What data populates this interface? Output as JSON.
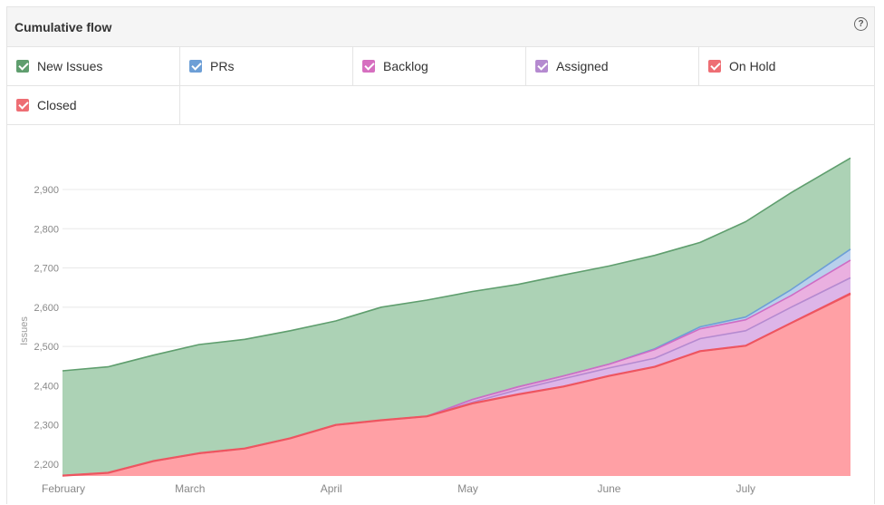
{
  "panel": {
    "title": "Cumulative flow",
    "help_icon": "question-circle-icon",
    "help_glyph": "?"
  },
  "legend": [
    {
      "label": "New Issues",
      "color": "#5f9e6e",
      "checked": true
    },
    {
      "label": "PRs",
      "color": "#6d9fd6",
      "checked": true
    },
    {
      "label": "Backlog",
      "color": "#d66fc0",
      "checked": true
    },
    {
      "label": "Assigned",
      "color": "#b58ad0",
      "checked": true
    },
    {
      "label": "On Hold",
      "color": "#ee6e74",
      "checked": true
    },
    {
      "label": "Closed",
      "color": "#ee6e74",
      "checked": true
    }
  ],
  "chart_data": {
    "type": "area",
    "stacked": true,
    "ylabel": "Issues",
    "ylim": [
      2170,
      2990
    ],
    "yticks": [
      "2,200",
      "2,300",
      "2,400",
      "2,500",
      "2,600",
      "2,700",
      "2,800",
      "2,900"
    ],
    "xticks": [
      "February",
      "March",
      "April",
      "May",
      "June",
      "July"
    ],
    "grid": true,
    "x_days": [
      0,
      10,
      20,
      30,
      40,
      50,
      60,
      70,
      80,
      90,
      100,
      110,
      120,
      130,
      140,
      150,
      160,
      173
    ],
    "series": [
      {
        "name": "Closed",
        "color": "#ee5560",
        "fill": "#ffa0a5",
        "values": [
          2171,
          2178,
          2208,
          2228,
          2240,
          2266,
          2300,
          2312,
          2322,
          2355,
          2378,
          2398,
          2425,
          2448,
          2488,
          2502,
          2560,
          2634
        ]
      },
      {
        "name": "On Hold",
        "color": "#ee5560",
        "fill": "#ffa0a5",
        "values": [
          2171,
          2178,
          2208,
          2228,
          2240,
          2266,
          2300,
          2312,
          2322,
          2355,
          2378,
          2398,
          2425,
          2448,
          2488,
          2502,
          2560,
          2636
        ]
      },
      {
        "name": "Assigned",
        "color": "#b58ad0",
        "fill": "#ddb5e8",
        "values": [
          2171,
          2178,
          2208,
          2228,
          2240,
          2266,
          2300,
          2312,
          2322,
          2358,
          2390,
          2418,
          2445,
          2470,
          2520,
          2540,
          2600,
          2675
        ]
      },
      {
        "name": "Backlog",
        "color": "#cf6cc4",
        "fill": "#eab0e0",
        "values": [
          2171,
          2178,
          2208,
          2228,
          2240,
          2266,
          2300,
          2312,
          2322,
          2365,
          2397,
          2425,
          2455,
          2492,
          2545,
          2568,
          2630,
          2720
        ]
      },
      {
        "name": "PRs",
        "color": "#6d9fd6",
        "fill": "#b8d0ec",
        "values": [
          2171,
          2178,
          2208,
          2228,
          2240,
          2266,
          2300,
          2312,
          2322,
          2365,
          2397,
          2425,
          2455,
          2494,
          2550,
          2575,
          2645,
          2748
        ]
      },
      {
        "name": "New Issues",
        "color": "#5f9e6e",
        "fill": "#acd2b5",
        "values": [
          2438,
          2448,
          2478,
          2505,
          2518,
          2540,
          2565,
          2600,
          2618,
          2640,
          2658,
          2682,
          2705,
          2732,
          2765,
          2818,
          2892,
          2980
        ]
      }
    ]
  }
}
